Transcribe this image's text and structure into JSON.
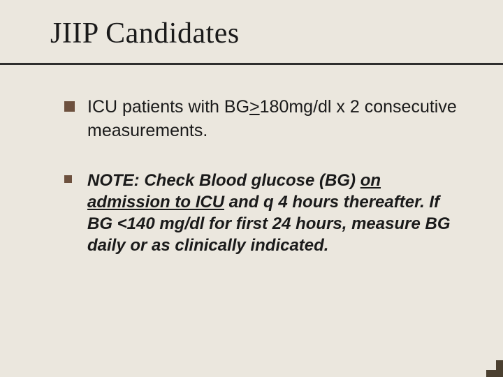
{
  "slide": {
    "title": "JIIP Candidates",
    "background_color": "#ebe7de",
    "divider_color": "#2e2e2e",
    "bullet_color": "#6d513e",
    "text_color": "#1a1a1a",
    "items": [
      {
        "type": "primary",
        "bullet_size": 15,
        "font_family": "Verdana",
        "font_size": 25,
        "bold": false,
        "italic": false,
        "segments": [
          {
            "text": " ICU patients with BG",
            "underline": false
          },
          {
            "text": ">",
            "underline": true
          },
          {
            "text": "180mg/dl x 2 consecutive measurements.",
            "underline": false
          }
        ]
      },
      {
        "type": "secondary",
        "bullet_size": 11,
        "font_family": "Arial",
        "font_size": 24,
        "bold": true,
        "italic": true,
        "segments": [
          {
            "text": "NOTE: Check Blood glucose (BG) ",
            "underline": false
          },
          {
            "text": "on admission to ICU",
            "underline": true
          },
          {
            "text": " and q 4 hours thereafter. If BG <140 mg/dl for first 24 hours, measure BG daily or as clinically indicated.",
            "underline": false
          }
        ]
      }
    ],
    "corner_accent_color": "#4b4030"
  }
}
